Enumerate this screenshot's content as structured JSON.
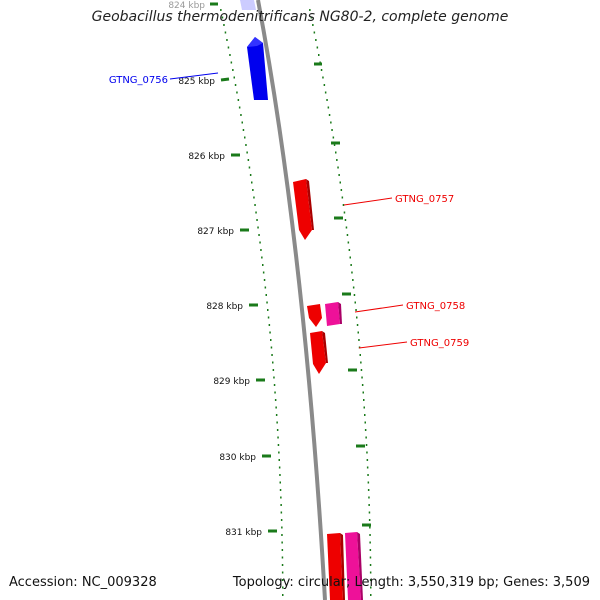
{
  "title": "Geobacillus thermodenitrificans NG80-2, complete genome",
  "footer": {
    "accession": "Accession: NC_009328",
    "summary": "Topology: circular; Length: 3,550,319 bp; Genes: 3,509"
  },
  "colors": {
    "backbone": "#8a8a8a",
    "forward_gene": "#0000ee",
    "reverse_gene": "#ee0000",
    "rna_gene": "#ee1199",
    "ticks": "#1a7a1a",
    "scale_label": "#111111"
  },
  "scale": {
    "unit": "kbp",
    "labels": [
      "824 kbp",
      "825 kbp",
      "826 kbp",
      "827 kbp",
      "828 kbp",
      "829 kbp",
      "830 kbp",
      "831 kbp"
    ]
  },
  "genes": [
    {
      "locus": "GTNG_0756",
      "strand": "forward"
    },
    {
      "locus": "GTNG_0757",
      "strand": "reverse"
    },
    {
      "locus": "GTNG_0758",
      "strand": "reverse"
    },
    {
      "locus": "GTNG_0759",
      "strand": "reverse"
    }
  ]
}
